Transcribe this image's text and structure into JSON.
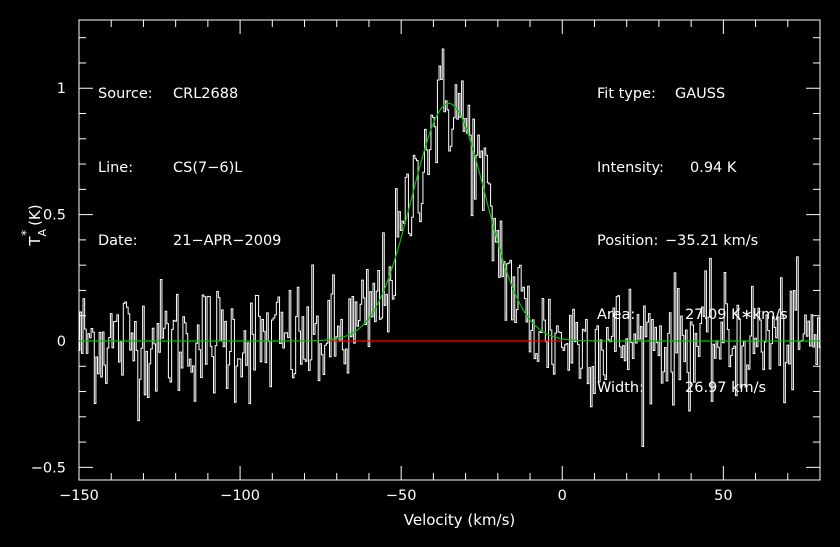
{
  "info_left": [
    {
      "key": "Source:",
      "value": "CRL2688"
    },
    {
      "key": "Line:",
      "value": "CS(7−6)L"
    },
    {
      "key": "Date:",
      "value": "21−APR−2009"
    }
  ],
  "info_right": [
    {
      "key": "Fit type:",
      "value": "GAUSS"
    },
    {
      "key": "Intensity:",
      "value": "0.94 K"
    },
    {
      "key": "Position:",
      "value": "−35.21 km/s"
    },
    {
      "key": "Area:",
      "value": "27.09 K∗km/s"
    },
    {
      "key": "Width:",
      "value": "26.97 km/s"
    }
  ],
  "colors": {
    "background": "#000000",
    "spectrum": "#ffffff",
    "fit": "#00c000",
    "baseline": "#ff0000",
    "axes": "#ffffff"
  },
  "chart_data": {
    "type": "line",
    "xlabel": "Velocity (km/s)",
    "ylabel": "T_A^* (K)",
    "ylabel_parts": {
      "main": "T",
      "sub": "A",
      "sup": "*",
      "unit": "(K)"
    },
    "xlim": [
      -150,
      80
    ],
    "ylim": [
      -0.55,
      1.27
    ],
    "xticks": [
      -150,
      -100,
      -50,
      0,
      50
    ],
    "xtick_labels": [
      "−150",
      "−100",
      "−50",
      "0",
      "50"
    ],
    "yticks": [
      -0.5,
      0,
      0.5,
      1
    ],
    "ytick_labels": [
      "−0.5",
      "0",
      "0.5",
      "1"
    ],
    "grid": false,
    "series": [
      {
        "kind": "noisy-spectrum",
        "channel_width_kms": 0.5,
        "rms_K": 0.12,
        "peak_K": 1.2,
        "peak_velocity_kms": -35,
        "noise_range_K": [
          -0.5,
          0.4
        ]
      },
      {
        "kind": "gaussian-fit",
        "amplitude_K": 0.94,
        "center_kms": -35.21,
        "fwhm_kms": 26.97
      },
      {
        "kind": "baseline",
        "x": [
          -72,
          0
        ],
        "y": [
          0,
          0
        ]
      }
    ]
  }
}
